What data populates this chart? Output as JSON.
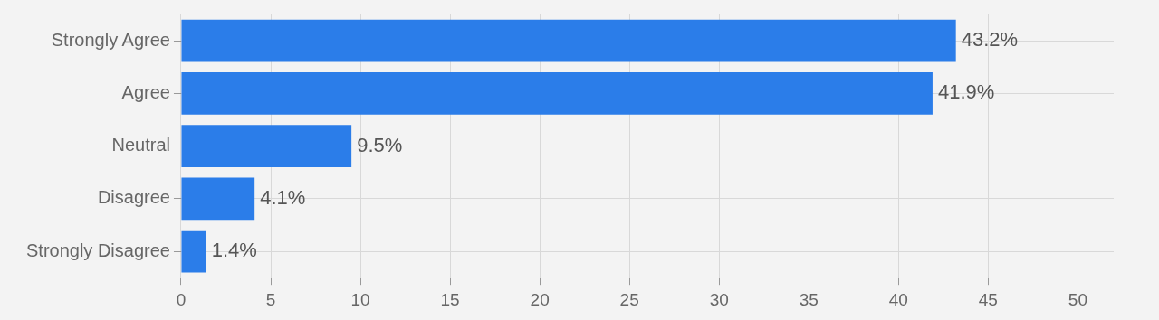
{
  "chart_data": {
    "type": "bar",
    "orientation": "horizontal",
    "categories": [
      "Strongly Agree",
      "Agree",
      "Neutral",
      "Disagree",
      "Strongly Disagree"
    ],
    "values": [
      43.2,
      41.9,
      9.5,
      4.1,
      1.4
    ],
    "value_labels": [
      "43.2%",
      "41.9%",
      "9.5%",
      "4.1%",
      "1.4%"
    ],
    "color": "#2b7de9",
    "xlim": [
      0,
      52
    ],
    "xticks": [
      0,
      5,
      10,
      15,
      20,
      25,
      30,
      35,
      40,
      45,
      50
    ],
    "grid": true,
    "legend": false
  }
}
